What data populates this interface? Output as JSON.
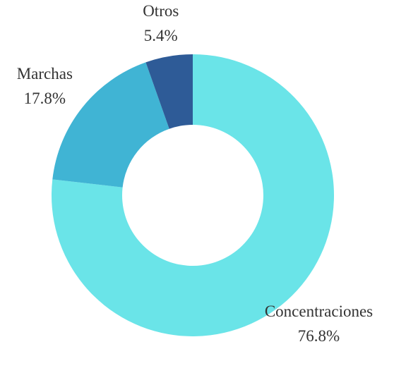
{
  "chart_data": {
    "type": "donut",
    "categories": [
      "Concentraciones",
      "Marchas",
      "Otros"
    ],
    "values": [
      76.8,
      17.8,
      5.4
    ],
    "value_labels": [
      "76.8%",
      "17.8%",
      "5.4%"
    ],
    "colors": [
      "#6ae4e8",
      "#40b4d4",
      "#2e5b97"
    ]
  }
}
